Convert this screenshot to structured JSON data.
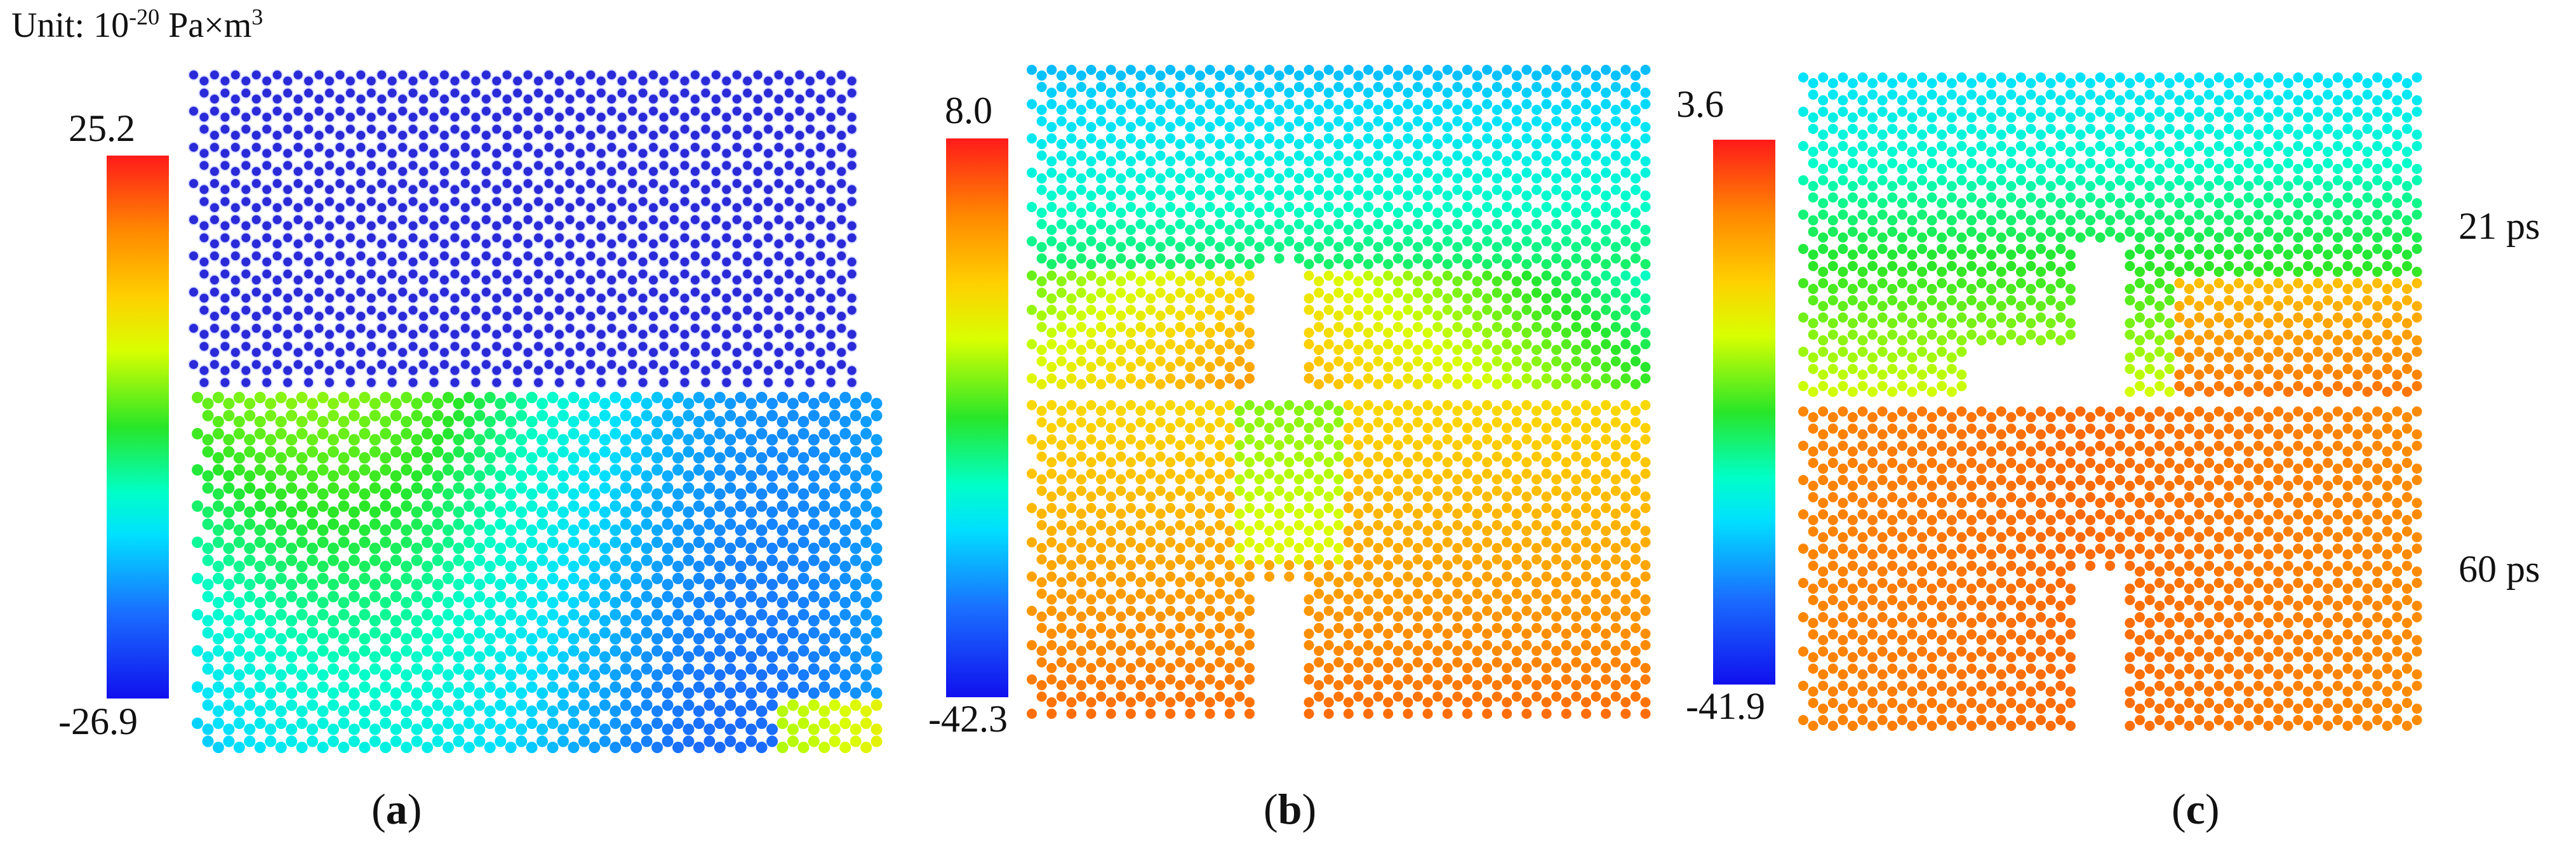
{
  "unit": {
    "prefix": "Unit: 10",
    "exponent": "-20",
    "suffix": " Pa×m",
    "suffix_sup": "3"
  },
  "panels": [
    {
      "letter": "a",
      "colorbar": {
        "max": "25.2",
        "min": "-26.9"
      }
    },
    {
      "letter": "b",
      "colorbar": {
        "max": "8.0",
        "min": "-42.3"
      }
    },
    {
      "letter": "c",
      "colorbar": {
        "max": "3.6",
        "min": "-41.9"
      }
    }
  ],
  "times": {
    "top": "21 ps",
    "bottom": "60 ps"
  },
  "colors": {
    "deep_blue": "#1a1acc",
    "blue": "#2a7bd8",
    "cyan": "#20d2d8",
    "green": "#2ad448",
    "yellow": "#e6dc1e",
    "orange": "#f08a20",
    "red": "#e4321a"
  }
}
